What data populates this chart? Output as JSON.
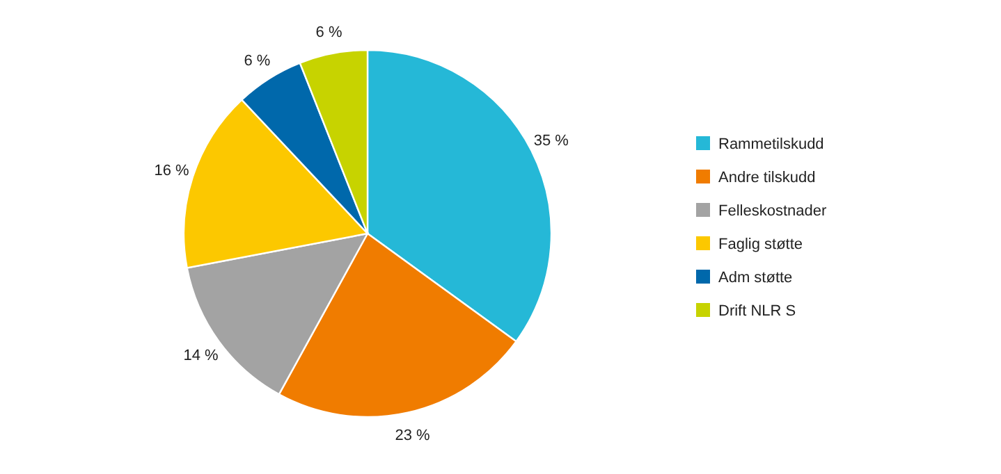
{
  "chart_data": {
    "type": "pie",
    "categories": [
      "Rammetilskudd",
      "Andre tilskudd",
      "Felleskostnader",
      "Faglig støtte",
      "Adm støtte",
      "Drift NLR S"
    ],
    "values": [
      35,
      23,
      14,
      16,
      6,
      6
    ],
    "value_labels": [
      "35 %",
      "23 %",
      "14 %",
      "16 %",
      "6 %",
      "6 %"
    ],
    "colors": [
      "#25b8d7",
      "#f07c00",
      "#a3a3a3",
      "#fcc800",
      "#0068ab",
      "#c7d300"
    ],
    "legend": "right"
  }
}
